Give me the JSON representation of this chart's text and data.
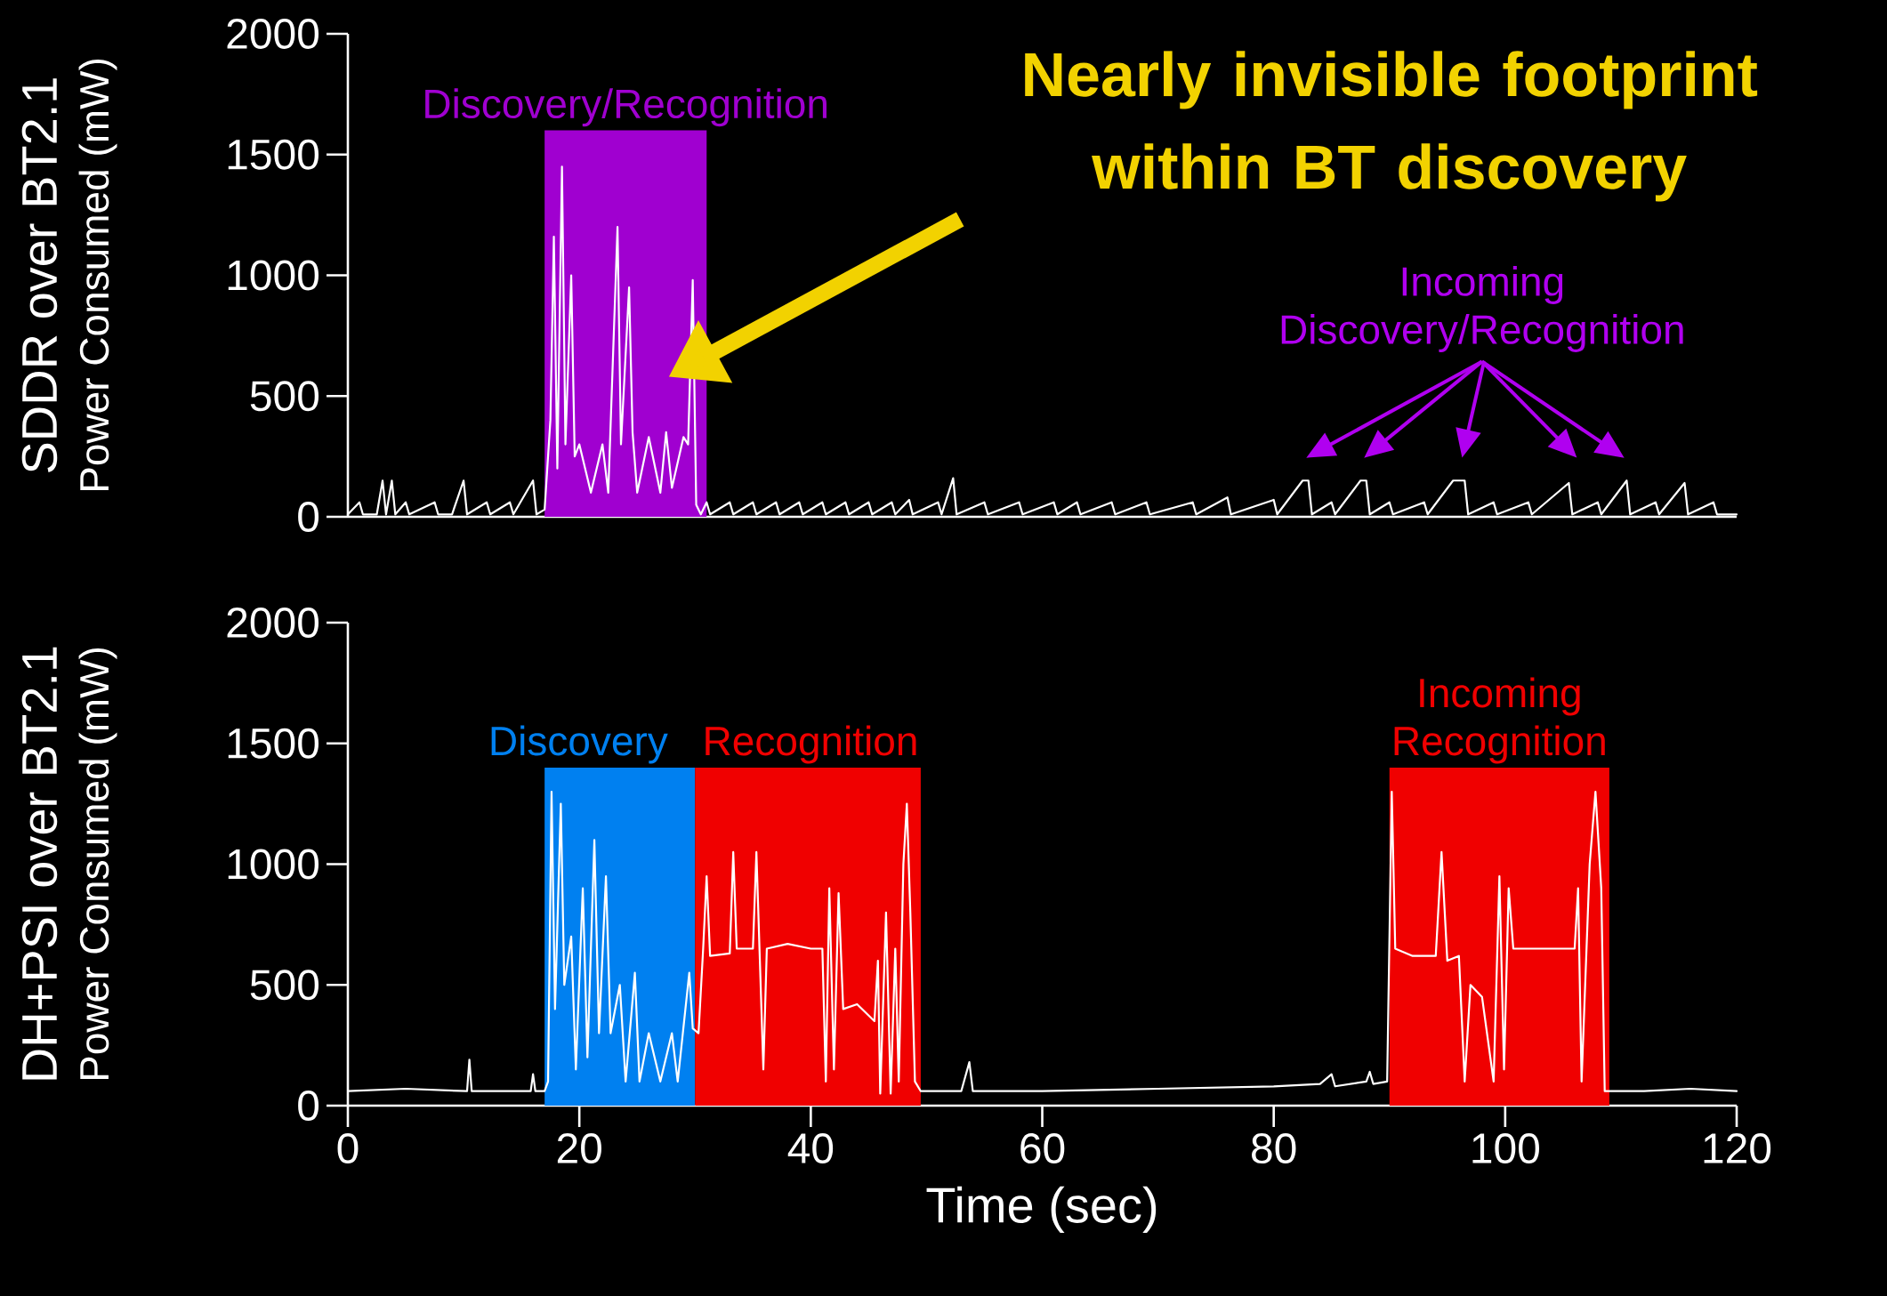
{
  "chart_data": [
    {
      "type": "line",
      "ylabel": "SDDR over BT2.1",
      "annotations": [
        "Power Consumed (mW)",
        "Nearly invisible footprint within BT discovery",
        "Incoming Discovery/Recognition"
      ],
      "xlim": [
        0,
        120
      ],
      "ylim": [
        0,
        2000
      ],
      "yticks": [
        0,
        500,
        1000,
        1500,
        2000
      ],
      "tick_labels": "y",
      "marker": "none",
      "bands": [
        {
          "axis": "x",
          "from": 17,
          "to": 31,
          "label": "Discovery/Recognition",
          "color": "#a000d0"
        }
      ],
      "series": [
        {
          "color": "#ffffff",
          "x": [
            0,
            1,
            1.3,
            2.5,
            3,
            3.3,
            3.8,
            4.1,
            5,
            5.3,
            7.5,
            7.8,
            9,
            10,
            10.3,
            12,
            12.3,
            14,
            14.3,
            16,
            16.3,
            17,
            17.5,
            17.8,
            18.1,
            18.5,
            18.8,
            19.3,
            19.6,
            20,
            21,
            22,
            22.5,
            23.3,
            23.6,
            24.3,
            24.6,
            25,
            26,
            27,
            27.5,
            28,
            29,
            29.4,
            29.8,
            30.1,
            30.5,
            31,
            31.3,
            33,
            33.3,
            35,
            35.3,
            37,
            37.3,
            39,
            39.3,
            41,
            41.3,
            43,
            43.3,
            45,
            45.3,
            47,
            47.3,
            48.5,
            48.8,
            51,
            51.3,
            52.3,
            52.6,
            55,
            55.3,
            58,
            58.3,
            61,
            61.3,
            63,
            63.3,
            66,
            66.3,
            69,
            69.3,
            73,
            73.3,
            76,
            76.3,
            80,
            80.3,
            82.5,
            83,
            83.3,
            85,
            85.3,
            87.5,
            88,
            88.3,
            90,
            90.3,
            93,
            93.3,
            95.5,
            96.5,
            96.8,
            99,
            99.3,
            102,
            102.3,
            105.5,
            105.8,
            108,
            108.3,
            110.5,
            110.8,
            113,
            113.3,
            115.5,
            115.8,
            118,
            118.3,
            120
          ],
          "values": [
            10,
            60,
            10,
            10,
            150,
            10,
            150,
            10,
            60,
            10,
            60,
            10,
            10,
            150,
            10,
            60,
            10,
            60,
            10,
            150,
            10,
            30,
            400,
            1160,
            200,
            1450,
            300,
            1000,
            250,
            300,
            100,
            300,
            100,
            1200,
            300,
            950,
            350,
            100,
            330,
            100,
            350,
            120,
            330,
            300,
            980,
            50,
            10,
            60,
            10,
            60,
            10,
            60,
            10,
            60,
            10,
            60,
            10,
            60,
            10,
            60,
            10,
            60,
            10,
            60,
            10,
            70,
            10,
            60,
            10,
            160,
            10,
            60,
            10,
            60,
            10,
            60,
            10,
            60,
            10,
            60,
            10,
            60,
            10,
            60,
            10,
            80,
            10,
            70,
            10,
            150,
            150,
            10,
            60,
            10,
            150,
            150,
            10,
            60,
            10,
            60,
            10,
            150,
            150,
            10,
            60,
            10,
            60,
            10,
            140,
            10,
            60,
            10,
            150,
            10,
            60,
            10,
            140,
            10,
            60,
            10,
            10
          ]
        }
      ]
    },
    {
      "type": "line",
      "xlabel": "Time (sec)",
      "ylabel": "DH+PSI over BT2.1",
      "annotations": [
        "Power Consumed (mW)"
      ],
      "xlim": [
        0,
        120
      ],
      "ylim": [
        0,
        2000
      ],
      "xticks": [
        0,
        20,
        40,
        60,
        80,
        100,
        120
      ],
      "yticks": [
        0,
        500,
        1000,
        1500,
        2000
      ],
      "marker": "none",
      "bands": [
        {
          "axis": "x",
          "from": 17,
          "to": 30,
          "label": "Discovery",
          "color": "#0080f0"
        },
        {
          "axis": "x",
          "from": 30,
          "to": 49.5,
          "label": "Recognition",
          "color": "#f00000"
        },
        {
          "axis": "x",
          "from": 90,
          "to": 109,
          "label": "Incoming Recognition",
          "color": "#f00000"
        }
      ],
      "series": [
        {
          "color": "#ffffff",
          "x": [
            0,
            5,
            10.3,
            10.5,
            10.7,
            15.8,
            16,
            16.2,
            17,
            17.3,
            17.6,
            17.9,
            18.4,
            18.7,
            19.3,
            19.7,
            20.3,
            20.7,
            21.3,
            21.7,
            22.3,
            22.7,
            23.5,
            24,
            24.8,
            25.2,
            26,
            27,
            28,
            28.5,
            29.5,
            29.8,
            30.3,
            30.7,
            31,
            31.3,
            33,
            33.3,
            33.6,
            35,
            35.3,
            35.6,
            35.9,
            36.2,
            38,
            40,
            41,
            41.3,
            41.6,
            42,
            42.4,
            42.8,
            44,
            45.5,
            45.8,
            46,
            46.5,
            46.9,
            47.3,
            47.6,
            48,
            48.3,
            48.6,
            49,
            49.5,
            53,
            53.7,
            54,
            60,
            70,
            80,
            84,
            85,
            85.3,
            88,
            88.3,
            88.6,
            89.8,
            90.2,
            90.5,
            92,
            94,
            94.5,
            95,
            96,
            96.5,
            97,
            98,
            99,
            99.5,
            99.9,
            100.3,
            100.7,
            103,
            106,
            106.3,
            106.6,
            107.3,
            107.8,
            108.3,
            108.6,
            112,
            116,
            120
          ],
          "values": [
            60,
            70,
            60,
            190,
            60,
            60,
            130,
            60,
            60,
            100,
            1300,
            400,
            1250,
            500,
            700,
            150,
            900,
            200,
            1100,
            300,
            950,
            300,
            500,
            100,
            550,
            100,
            300,
            100,
            300,
            100,
            550,
            320,
            300,
            650,
            950,
            620,
            630,
            1050,
            650,
            650,
            1050,
            600,
            150,
            650,
            670,
            650,
            650,
            100,
            900,
            150,
            880,
            400,
            420,
            350,
            600,
            50,
            800,
            50,
            650,
            100,
            1000,
            1250,
            800,
            100,
            60,
            60,
            180,
            60,
            60,
            70,
            80,
            90,
            130,
            80,
            100,
            140,
            90,
            100,
            1300,
            650,
            620,
            620,
            1050,
            600,
            620,
            100,
            500,
            450,
            100,
            950,
            150,
            900,
            650,
            650,
            650,
            900,
            100,
            1000,
            1300,
            900,
            60,
            60,
            70,
            60
          ]
        }
      ]
    }
  ]
}
